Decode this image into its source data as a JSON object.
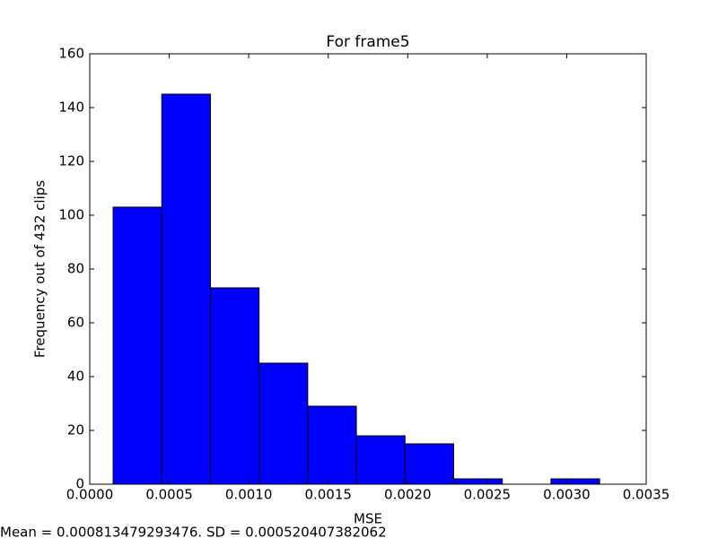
{
  "chart_data": {
    "type": "histogram",
    "title": "For frame5",
    "xlabel": "MSE",
    "ylabel": "Frequency out of 432 clips",
    "annotation": "Mean = 0.000813479293476. SD = 0.000520407382062",
    "bins": [
      0.000147,
      0.000453,
      0.000759,
      0.001065,
      0.001371,
      0.001677,
      0.001983,
      0.002289,
      0.002595,
      0.002901,
      0.003207
    ],
    "values": [
      103,
      145,
      73,
      45,
      29,
      18,
      15,
      2,
      0,
      2
    ],
    "color": "#0000ff",
    "edgecolor": "#000000",
    "xlim": [
      0,
      0.0035
    ],
    "xticks": [
      {
        "value": 0,
        "label": "0.0000"
      },
      {
        "value": 0.0005,
        "label": "0.0005"
      },
      {
        "value": 0.001,
        "label": "0.0010"
      },
      {
        "value": 0.0015,
        "label": "0.0015"
      },
      {
        "value": 0.002,
        "label": "0.0020"
      },
      {
        "value": 0.0025,
        "label": "0.0025"
      },
      {
        "value": 0.003,
        "label": "0.0030"
      },
      {
        "value": 0.0035,
        "label": "0.0035"
      }
    ],
    "ylim": [
      0,
      160
    ],
    "yticks": [
      0,
      20,
      40,
      60,
      80,
      100,
      120,
      140,
      160
    ],
    "grid": false
  }
}
